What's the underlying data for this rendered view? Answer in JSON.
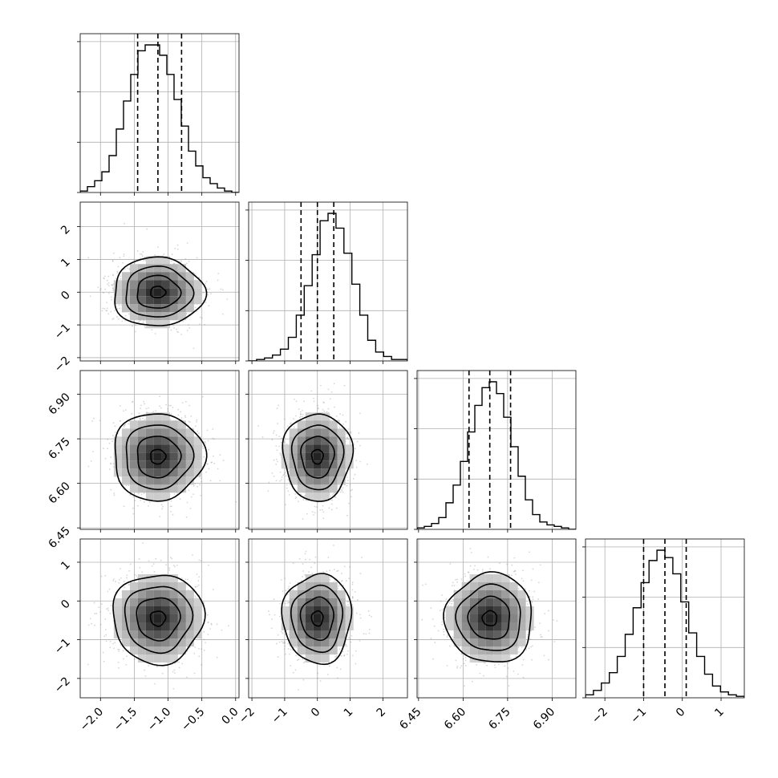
{
  "chart_data": {
    "type": "corner",
    "parameters": [
      {
        "range": [
          -2.3,
          0.05
        ],
        "ticks": [
          -2.0,
          -1.5,
          -1.0,
          -0.5,
          0.0
        ],
        "tick_labels": [
          "−2.0",
          "−1.5",
          "−1.0",
          "−0.5",
          "0.0"
        ],
        "quantiles": [
          -1.45,
          -1.15,
          -0.8
        ],
        "mean": -1.15,
        "sd": 0.32,
        "hist": [
          1,
          4,
          8,
          14,
          25,
          43,
          62,
          80,
          96,
          100,
          100,
          93,
          80,
          63,
          45,
          28,
          18,
          10,
          6,
          3,
          1,
          0
        ]
      },
      {
        "range": [
          -2.1,
          2.75
        ],
        "ticks": [
          -2,
          -1,
          0,
          1,
          2
        ],
        "tick_labels": [
          "−2",
          "−1",
          "0",
          "1",
          "2"
        ],
        "quantiles": [
          -0.5,
          0.0,
          0.5
        ],
        "mean": 0.0,
        "sd": 0.5,
        "hist": [
          0,
          1,
          2,
          4,
          8,
          16,
          31,
          51,
          72,
          95,
          100,
          90,
          73,
          52,
          31,
          14,
          6,
          3,
          1,
          1
        ]
      },
      {
        "range": [
          6.445,
          6.98
        ],
        "ticks": [
          6.45,
          6.6,
          6.75,
          6.9
        ],
        "tick_labels": [
          "6.45",
          "6.60",
          "6.75",
          "6.90"
        ],
        "quantiles": [
          6.62,
          6.69,
          6.76
        ],
        "mean": 6.69,
        "sd": 0.07,
        "hist": [
          1,
          2,
          4,
          8,
          18,
          30,
          46,
          66,
          84,
          96,
          100,
          92,
          76,
          56,
          36,
          20,
          10,
          5,
          3,
          2,
          1,
          0
        ]
      },
      {
        "range": [
          -2.5,
          1.6
        ],
        "ticks": [
          -2,
          -1,
          0,
          1
        ],
        "tick_labels": [
          "−2",
          "−1",
          "0",
          "1"
        ],
        "quantiles": [
          -1.0,
          -0.45,
          0.1
        ],
        "mean": -0.45,
        "sd": 0.55,
        "hist": [
          2,
          5,
          10,
          17,
          28,
          43,
          61,
          78,
          93,
          100,
          95,
          84,
          65,
          44,
          28,
          16,
          8,
          4,
          2,
          1
        ]
      }
    ]
  }
}
